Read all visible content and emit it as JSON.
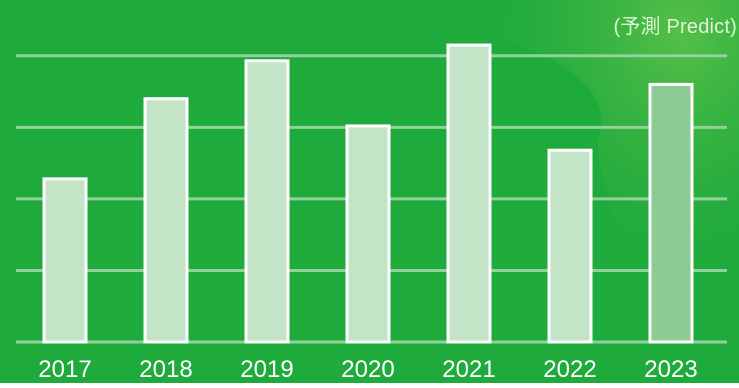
{
  "chart_data": {
    "type": "bar",
    "categories": [
      "2017",
      "2018",
      "2019",
      "2020",
      "2021",
      "2022",
      "2023"
    ],
    "values": [
      2.28,
      3.4,
      3.93,
      3.02,
      4.15,
      2.68,
      3.6
    ],
    "predicted": [
      false,
      false,
      false,
      false,
      false,
      false,
      true
    ],
    "ylim": [
      0,
      4.5
    ],
    "yticks": [
      0,
      1,
      2,
      3,
      4
    ],
    "grid": true,
    "annotation": "(予測 Predict)"
  },
  "colors": {
    "background": "#1faa3c",
    "bar": "#c4e4c8",
    "bar_predicted": "#8dcb94",
    "bar_border": "#ffffff",
    "grid": "#8fd29c",
    "tick_label": "#ffffff"
  }
}
